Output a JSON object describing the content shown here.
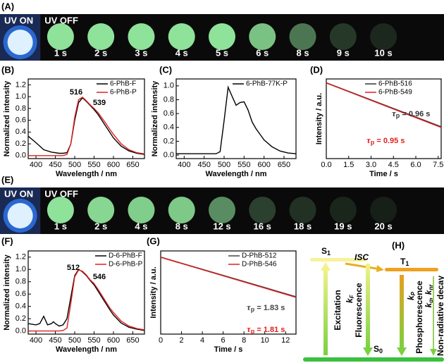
{
  "strips": [
    {
      "label": "(A)",
      "uv_on": "UV ON",
      "uv_off": "UV OFF",
      "times": [
        "1 s",
        "2 s",
        "3 s",
        "4 s",
        "5 s",
        "6 s",
        "8 s",
        "9 s",
        "10 s"
      ]
    },
    {
      "label": "(E)",
      "uv_on": "UV ON",
      "uv_off": "UV OFF",
      "times": [
        "1 s",
        "2 s",
        "4 s",
        "8 s",
        "12 s",
        "16 s",
        "18 s",
        "19 s",
        "20 s"
      ]
    }
  ],
  "chart_data": [
    {
      "type": "line",
      "panel": "(B)",
      "xlabel": "Wavelength / nm",
      "ylabel": "Normalized intensity",
      "x": [
        380,
        400,
        420,
        440,
        460,
        470,
        480,
        490,
        500,
        510,
        520,
        530,
        540,
        550,
        560,
        570,
        580,
        590,
        600,
        620,
        640,
        660,
        680
      ],
      "series": [
        {
          "name": "6-PhB-F",
          "color": "#000000",
          "values": [
            0.33,
            0.22,
            0.1,
            0.06,
            0.04,
            0.04,
            0.05,
            0.2,
            0.6,
            0.9,
            0.98,
            0.92,
            0.85,
            0.78,
            0.7,
            0.6,
            0.5,
            0.4,
            0.3,
            0.16,
            0.08,
            0.04,
            0.02
          ]
        },
        {
          "name": "6-PhB-P",
          "color": "#e02020",
          "values": [
            0.0,
            0.0,
            0.0,
            0.0,
            0.0,
            0.0,
            0.02,
            0.2,
            0.65,
            0.95,
            0.99,
            0.93,
            0.86,
            0.8,
            0.73,
            0.64,
            0.55,
            0.45,
            0.36,
            0.2,
            0.1,
            0.05,
            0.03
          ]
        }
      ],
      "annotations": [
        "516",
        "539"
      ],
      "xlim": [
        380,
        680
      ],
      "xticks": [
        400,
        450,
        500,
        550,
        600,
        650
      ],
      "ylim": [
        -0.05,
        1.3
      ],
      "yticks": [
        {
          "value": 0,
          "label": "0.0"
        },
        0.2,
        0.4,
        0.6,
        0.8,
        {
          "value": 1,
          "label": "1.0"
        },
        1.2
      ],
      "legend": "upper right"
    },
    {
      "type": "line",
      "panel": "(C)",
      "xlabel": "Wavelength / nm",
      "ylabel": "Normalized intensity",
      "x": [
        380,
        400,
        420,
        440,
        460,
        470,
        480,
        490,
        500,
        510,
        520,
        530,
        540,
        550,
        560,
        570,
        580,
        590,
        600,
        620,
        640,
        660,
        680
      ],
      "series": [
        {
          "name": "6-PhB-77K-P",
          "color": "#000000",
          "values": [
            0.02,
            0.02,
            0.02,
            0.02,
            0.02,
            0.02,
            0.02,
            0.05,
            0.5,
            0.98,
            0.85,
            0.72,
            0.76,
            0.77,
            0.65,
            0.48,
            0.38,
            0.3,
            0.22,
            0.12,
            0.06,
            0.03,
            0.02
          ]
        }
      ],
      "xlim": [
        380,
        680
      ],
      "xticks": [
        400,
        450,
        500,
        550,
        600,
        650
      ],
      "ylim": [
        -0.05,
        1.1
      ],
      "yticks": [
        {
          "value": 0,
          "label": "0.0"
        },
        0.2,
        0.4,
        0.6,
        0.8,
        {
          "value": 1,
          "label": "1.0"
        }
      ],
      "legend": "upper right"
    },
    {
      "type": "line",
      "panel": "(D)",
      "xlabel": "Time / s",
      "ylabel": "Intensity / a.u.",
      "x": [
        0,
        7.7
      ],
      "series": [
        {
          "name": "6-PhB-516",
          "color": "#333333",
          "values": [
            1,
            0.00033
          ]
        },
        {
          "name": "6-PhB-549",
          "color": "#e02020",
          "values": [
            0.95,
            0.00029
          ]
        }
      ],
      "lifetimes": [
        {
          "symbol": "τ",
          "sub": "p",
          "rest": " = 0.96 s"
        },
        {
          "symbol": "τ",
          "sub": "p",
          "rest": " = 0.95 s"
        }
      ],
      "xlim": [
        0,
        7.7
      ],
      "xticks": [
        {
          "value": 0,
          "label": "0.0"
        },
        1.5,
        {
          "value": 3,
          "label": "3.0"
        },
        4.5,
        {
          "value": 6,
          "label": "6.0"
        },
        7.5
      ],
      "ylim": [
        1e-06,
        2
      ],
      "log_y": true,
      "legend": "upper right"
    },
    {
      "type": "line",
      "panel": "(F)",
      "xlabel": "Wavelength / nm",
      "ylabel": "Normalized intensity",
      "x": [
        380,
        400,
        410,
        420,
        430,
        440,
        445,
        450,
        460,
        470,
        480,
        490,
        500,
        510,
        520,
        530,
        540,
        550,
        560,
        570,
        580,
        590,
        600,
        620,
        640,
        660,
        680
      ],
      "series": [
        {
          "name": "D-6-PhB-F",
          "color": "#000000",
          "values": [
            0.12,
            0.1,
            0.12,
            0.24,
            0.1,
            0.12,
            0.15,
            0.12,
            0.08,
            0.1,
            0.2,
            0.55,
            0.9,
            1.0,
            0.96,
            0.9,
            0.82,
            0.75,
            0.65,
            0.55,
            0.45,
            0.35,
            0.26,
            0.13,
            0.06,
            0.03,
            0.01
          ]
        },
        {
          "name": "D-6-PhB-P",
          "color": "#e02020",
          "values": [
            0.0,
            0.0,
            0.0,
            0.0,
            0.0,
            0.0,
            0.0,
            0.0,
            0.0,
            0.01,
            0.05,
            0.45,
            0.88,
            0.99,
            0.97,
            0.91,
            0.83,
            0.77,
            0.68,
            0.58,
            0.48,
            0.38,
            0.3,
            0.16,
            0.08,
            0.04,
            0.02
          ]
        }
      ],
      "annotations": [
        "512",
        "546"
      ],
      "xlim": [
        380,
        680
      ],
      "xticks": [
        400,
        450,
        500,
        550,
        600,
        650
      ],
      "ylim": [
        -0.05,
        1.3
      ],
      "yticks": [
        {
          "value": 0,
          "label": "0.0"
        },
        0.2,
        0.4,
        0.6,
        0.8,
        {
          "value": 1,
          "label": "1.0"
        },
        1.2
      ],
      "legend": "upper right"
    },
    {
      "type": "line",
      "panel": "(G)",
      "xlabel": "Time / s",
      "ylabel": "Intensity / a.u.",
      "x": [
        0,
        13
      ],
      "series": [
        {
          "name": "D-PhB-512",
          "color": "#444444",
          "values": [
            1,
            0.00082
          ]
        },
        {
          "name": "D-PhB-546",
          "color": "#e02020",
          "values": [
            0.95,
            0.00072
          ]
        }
      ],
      "lifetimes": [
        {
          "symbol": "τ",
          "sub": "p",
          "rest": " = 1.83 s"
        },
        {
          "symbol": "τ",
          "sub": "p",
          "rest": " = 1.81 s"
        }
      ],
      "xlim": [
        0,
        13
      ],
      "xticks": [
        0,
        2,
        4,
        6,
        8,
        10,
        12
      ],
      "ylim": [
        1e-06,
        3
      ],
      "log_y": true,
      "legend": "upper right"
    }
  ],
  "diagram": {
    "label": "(H)",
    "levels": [
      {
        "text": "S",
        "sub": "1"
      },
      {
        "text": "T",
        "sub": "1"
      },
      {
        "text": "S",
        "sub": "0"
      }
    ],
    "isc": "ISC",
    "excitation": "Excitation",
    "fluorescence": "Fluorescence",
    "phosphorescence": "Phosphorescence",
    "nonradiative": "Non-radiative decay",
    "rates": [
      {
        "text": "k",
        "sub": "F"
      },
      {
        "text": "k",
        "sub": "P"
      },
      {
        "text": "k",
        "sub": "q"
      },
      {
        "text": "k",
        "sub": "nr"
      }
    ],
    "separator": ","
  }
}
